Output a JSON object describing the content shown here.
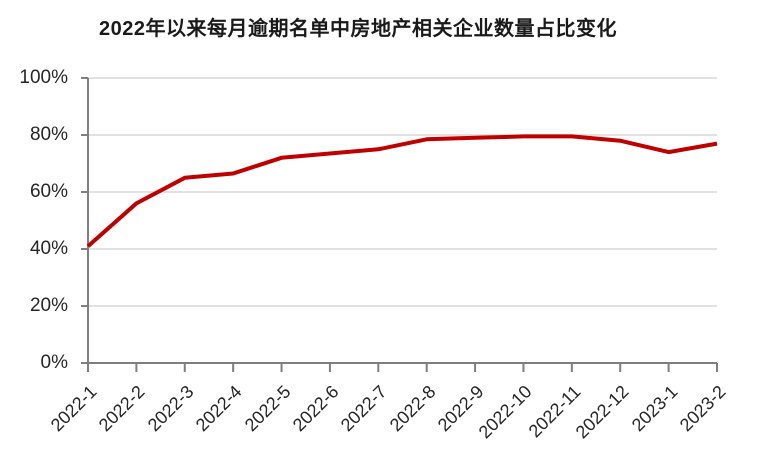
{
  "chart_data": {
    "type": "line",
    "title": "2022年以来每月逾期名单中房地产相关企业数量占比变化",
    "categories": [
      "2022-1",
      "2022-2",
      "2022-3",
      "2022-4",
      "2022-5",
      "2022-6",
      "2022-7",
      "2022-8",
      "2022-9",
      "2022-10",
      "2022-11",
      "2022-12",
      "2023-1",
      "2023-2"
    ],
    "values": [
      41,
      56,
      65,
      66.5,
      72,
      73.5,
      75,
      78.5,
      79,
      79.5,
      79.5,
      78,
      74,
      77
    ],
    "xlabel": "",
    "ylabel": "",
    "ylim": [
      0,
      100
    ],
    "ytick_step": 20,
    "ytick_labels": [
      "0%",
      "20%",
      "40%",
      "60%",
      "80%",
      "100%"
    ],
    "grid": "horizontal",
    "legend": "none",
    "colors": {
      "line": "#C00000",
      "gridline": "#D9D9D9",
      "axis": "#7F7F7F",
      "tick_text": "#262626",
      "title_text": "#1A1A1A",
      "background": "#FFFFFF"
    }
  }
}
